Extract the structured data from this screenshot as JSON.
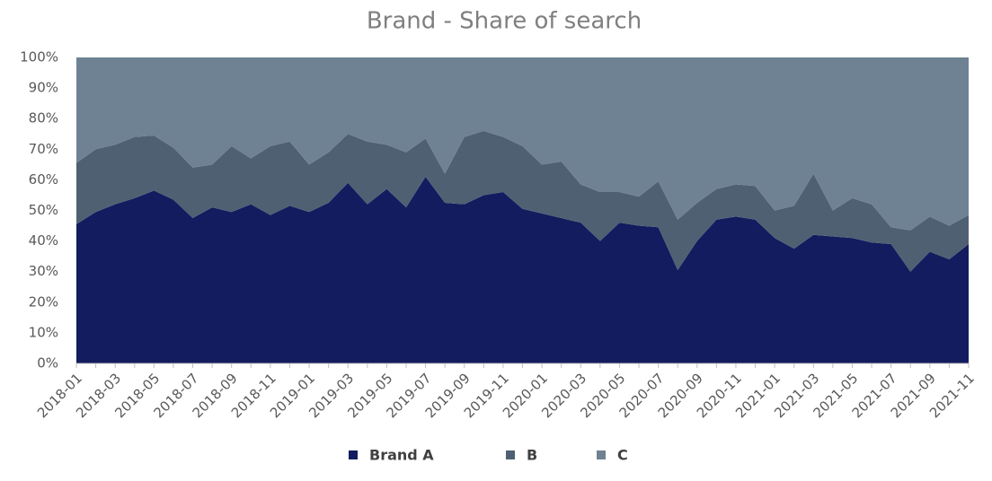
{
  "chart_data": {
    "type": "stacked_area_100",
    "title": "Brand - Share of search",
    "categories": [
      "2018-01",
      null,
      "2018-03",
      null,
      "2018-05",
      null,
      "2018-07",
      null,
      "2018-09",
      null,
      "2018-11",
      null,
      "2019-01",
      null,
      "2019-03",
      null,
      "2019-05",
      null,
      "2019-07",
      null,
      "2019-09",
      null,
      "2019-11",
      null,
      "2020-01",
      null,
      "2020-03",
      null,
      "2020-05",
      null,
      "2020-07",
      null,
      "2020-09",
      null,
      "2020-11",
      null,
      "2021-01",
      null,
      "2021-03",
      null,
      "2021-05",
      null,
      "2021-07",
      null,
      "2021-09",
      null,
      "2021-11"
    ],
    "series": [
      {
        "name": "Brand A",
        "color": "#121c5e",
        "values": [
          45.5,
          49.5,
          52,
          54,
          56.5,
          53.5,
          47.5,
          51,
          49.5,
          52,
          48.5,
          51.5,
          49.5,
          52.5,
          59,
          52,
          57,
          51,
          61,
          52.5,
          52,
          55,
          56,
          50.5,
          49,
          47.5,
          46,
          40,
          46,
          45,
          44.5,
          30.5,
          40,
          47,
          48,
          47,
          41,
          37.5,
          42,
          41.5,
          41,
          39.5,
          39,
          30,
          36.5,
          34,
          39
        ]
      },
      {
        "name": "B",
        "color": "#4f6072",
        "values": [
          20,
          20.5,
          19.5,
          20,
          18,
          17,
          16.5,
          14,
          21.5,
          15,
          22.5,
          21,
          15.5,
          16.5,
          16,
          20.5,
          14.5,
          18,
          12.5,
          9.5,
          22,
          21,
          18,
          20.5,
          16,
          18.5,
          12.5,
          16,
          10,
          9.5,
          15,
          16.5,
          12.5,
          10,
          10.5,
          11,
          9,
          14,
          20,
          8.5,
          13,
          12.5,
          5.5,
          13.5,
          11.5,
          11,
          9.5
        ]
      },
      {
        "name": "C",
        "color": "#6e8294",
        "values": [
          34.5,
          30,
          28.5,
          26,
          25.5,
          29.5,
          36,
          35,
          29,
          33,
          29,
          27.5,
          35,
          31,
          25,
          27.5,
          28.5,
          31,
          26.5,
          38,
          26,
          24,
          26,
          29,
          35,
          34,
          41.5,
          44,
          44,
          45.5,
          40.5,
          53,
          47.5,
          43,
          41.5,
          42,
          50,
          48.5,
          38,
          50,
          46,
          48,
          55.5,
          56.5,
          52,
          55,
          51.5
        ]
      }
    ],
    "ylim": [
      0,
      100
    ],
    "yticks": [
      {
        "value": 0,
        "label": "0%"
      },
      {
        "value": 10,
        "label": "10%"
      },
      {
        "value": 20,
        "label": "20%"
      },
      {
        "value": 30,
        "label": "30%"
      },
      {
        "value": 40,
        "label": "40%"
      },
      {
        "value": 50,
        "label": "50%"
      },
      {
        "value": 60,
        "label": "60%"
      },
      {
        "value": 70,
        "label": "70%"
      },
      {
        "value": 80,
        "label": "80%"
      },
      {
        "value": 90,
        "label": "90%"
      },
      {
        "value": 100,
        "label": "100%"
      }
    ],
    "legend": "bottom"
  }
}
